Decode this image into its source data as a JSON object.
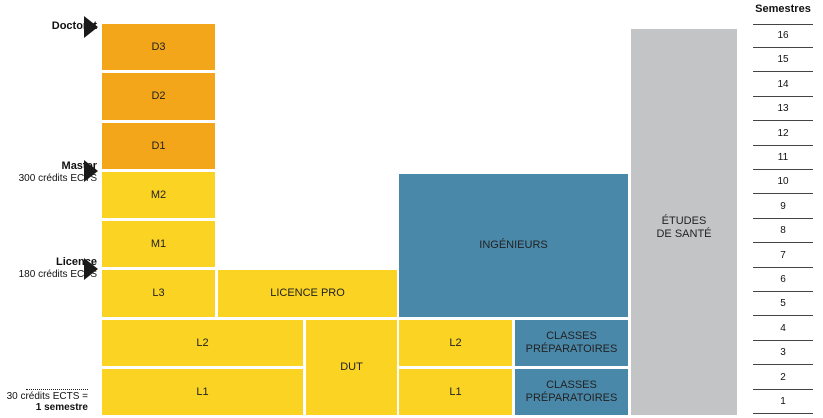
{
  "levels": {
    "doctorat": "Doctorat",
    "master": "Master",
    "master_sub": "300 crédits ECTS",
    "licence": "Licence",
    "licence_sub": "180 crédits ECTS"
  },
  "legend": {
    "line1": "30 crédits ECTS =",
    "line2": "1 semestre"
  },
  "blocks": {
    "d3": "D3",
    "d2": "D2",
    "d1": "D1",
    "m2": "M2",
    "m1": "M1",
    "l3": "L3",
    "l2": "L2",
    "l1": "L1",
    "licence_pro": "LICENCE PRO",
    "dut": "DUT",
    "ing": "INGÉNIEURS",
    "ing_l2": "L2",
    "ing_l1": "L1",
    "classes_1": "CLASSES\nPRÉPARATOIRES",
    "classes_2": "CLASSES\nPRÉPARATOIRES",
    "sante": "ÉTUDES\nDE SANTÉ"
  },
  "semestres": {
    "title": "Semestres",
    "values": [
      "16",
      "15",
      "14",
      "13",
      "12",
      "11",
      "10",
      "9",
      "8",
      "7",
      "6",
      "5",
      "4",
      "3",
      "2",
      "1"
    ]
  },
  "colors": {
    "doctorat": "#f4a61a",
    "licence_master": "#fbd323",
    "ingenieurs": "#4a88a9",
    "sante": "#c3c4c6"
  }
}
